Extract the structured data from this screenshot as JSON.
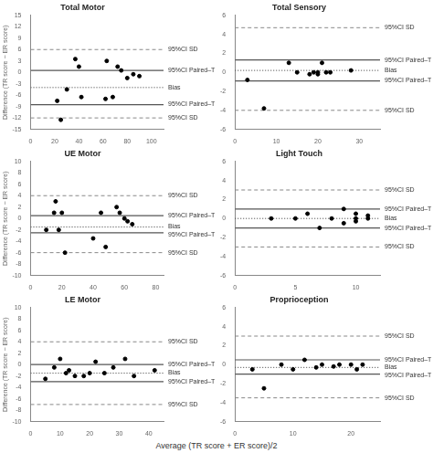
{
  "chart_data": [
    {
      "type": "scatter",
      "title": "Total Motor",
      "ylabel": "Difference (TR score − ER score)",
      "x": [
        22,
        25,
        30,
        37,
        40,
        42,
        62,
        63,
        68,
        72,
        75,
        80,
        85,
        90
      ],
      "values": [
        -7.5,
        -12.5,
        -4.5,
        3.5,
        1.5,
        -6.5,
        -7.0,
        3.0,
        -6.5,
        1.5,
        0.5,
        -1.5,
        -0.5,
        -1.0
      ],
      "color": "#000000",
      "xlim": [
        0,
        110
      ],
      "ylim": [
        -15,
        15
      ],
      "xticks": [
        0,
        20,
        40,
        60,
        80,
        100
      ],
      "yticks": [
        -15,
        -12,
        -9,
        -6,
        -3,
        0,
        3,
        6,
        9,
        12,
        15
      ],
      "grid": false,
      "annotations": [
        {
          "y": 6.0,
          "text": "95%CI SD",
          "line_style": "dashed",
          "color": "#888888"
        },
        {
          "y": -12.0,
          "text": "95%CI SD",
          "line_style": "dashed",
          "color": "#888888"
        },
        {
          "y": 0.5,
          "text": "95%CI Paired–T",
          "line_style": "solid",
          "color": "#555555"
        },
        {
          "y": -8.5,
          "text": "95%CI Paired–T",
          "line_style": "solid",
          "color": "#555555"
        },
        {
          "y": -4.0,
          "text": "Bias",
          "line_style": "dotted",
          "color": "#333333"
        }
      ]
    },
    {
      "type": "scatter",
      "title": "Total Sensory",
      "x": [
        3,
        7,
        13,
        15,
        18,
        19,
        20,
        20,
        21,
        22,
        23,
        28
      ],
      "values": [
        -0.8,
        -3.8,
        1.0,
        0.0,
        -0.2,
        0.0,
        0.0,
        -0.2,
        1.0,
        0.0,
        0.0,
        0.2
      ],
      "color": "#000000",
      "xlim": [
        0,
        35
      ],
      "ylim": [
        -6,
        6
      ],
      "xticks": [
        0,
        10,
        20,
        30
      ],
      "yticks": [
        -6,
        -4,
        -2,
        0,
        2,
        4,
        6
      ],
      "grid": false,
      "annotations": [
        {
          "y": 4.7,
          "text": "95%CI SD",
          "line_style": "dashed",
          "color": "#888888"
        },
        {
          "y": -4.0,
          "text": "95%CI SD",
          "line_style": "dashed",
          "color": "#888888"
        },
        {
          "y": 1.3,
          "text": "95%CI Paired–T",
          "line_style": "solid",
          "color": "#555555"
        },
        {
          "y": -0.9,
          "text": "95%CI Paired–T",
          "line_style": "solid",
          "color": "#555555"
        },
        {
          "y": 0.2,
          "text": "Bias",
          "line_style": "dotted",
          "color": "#333333"
        }
      ]
    },
    {
      "type": "scatter",
      "title": "UE Motor",
      "ylabel": "Difference (TR score − ER score)",
      "x": [
        10,
        15,
        16,
        18,
        20,
        22,
        40,
        45,
        48,
        55,
        57,
        60,
        62,
        65
      ],
      "values": [
        -2.0,
        1.0,
        3.0,
        -2.0,
        1.0,
        -6.0,
        -3.5,
        1.0,
        -5.0,
        2.0,
        1.0,
        0.0,
        -0.5,
        -1.0
      ],
      "color": "#000000",
      "xlim": [
        0,
        85
      ],
      "ylim": [
        -10,
        10
      ],
      "xticks": [
        0,
        20,
        40,
        60,
        80
      ],
      "yticks": [
        -10,
        -8,
        -6,
        -4,
        -2,
        0,
        2,
        4,
        6,
        8,
        10
      ],
      "grid": false,
      "annotations": [
        {
          "y": 4.0,
          "text": "95%CI SD",
          "line_style": "dashed",
          "color": "#888888"
        },
        {
          "y": -6.0,
          "text": "95%CI SD",
          "line_style": "dashed",
          "color": "#888888"
        },
        {
          "y": 0.5,
          "text": "95%CI Paired–T",
          "line_style": "solid",
          "color": "#555555"
        },
        {
          "y": -2.5,
          "text": "95%CI Paired–T",
          "line_style": "solid",
          "color": "#555555"
        },
        {
          "y": -1.5,
          "text": "Bias",
          "line_style": "dotted",
          "color": "#333333"
        }
      ]
    },
    {
      "type": "scatter",
      "title": "Light Touch",
      "x": [
        3,
        5,
        6,
        7,
        8,
        9,
        9,
        10,
        10,
        10,
        11,
        11
      ],
      "values": [
        0.0,
        0.0,
        0.5,
        -1.0,
        0.0,
        1.0,
        -0.5,
        0.0,
        0.5,
        -0.3,
        0.0,
        0.3
      ],
      "color": "#000000",
      "xlim": [
        0,
        12
      ],
      "ylim": [
        -6,
        6
      ],
      "xticks": [
        0,
        5,
        10
      ],
      "yticks": [
        -6,
        -4,
        -2,
        0,
        2,
        4,
        6
      ],
      "grid": false,
      "annotations": [
        {
          "y": 3.0,
          "text": "95%CI SD",
          "line_style": "dashed",
          "color": "#888888"
        },
        {
          "y": -3.0,
          "text": "95%CI SD",
          "line_style": "dashed",
          "color": "#888888"
        },
        {
          "y": 1.0,
          "text": "95%CI Paired–T",
          "line_style": "solid",
          "color": "#555555"
        },
        {
          "y": -1.0,
          "text": "95%CI Paired–T",
          "line_style": "solid",
          "color": "#555555"
        },
        {
          "y": 0.0,
          "text": "Bias",
          "line_style": "dotted",
          "color": "#333333"
        }
      ]
    },
    {
      "type": "scatter",
      "title": "LE Motor",
      "ylabel": "Difference (TR score − ER score)",
      "x": [
        5,
        8,
        10,
        12,
        13,
        15,
        18,
        20,
        22,
        25,
        28,
        32,
        35,
        42
      ],
      "values": [
        -2.5,
        -0.5,
        1.0,
        -1.5,
        -1.0,
        -2.0,
        -2.0,
        -1.5,
        0.5,
        -1.5,
        -0.5,
        1.0,
        -2.0,
        -1.0
      ],
      "color": "#000000",
      "xlim": [
        0,
        45
      ],
      "ylim": [
        -10,
        10
      ],
      "xticks": [
        0,
        10,
        20,
        30,
        40
      ],
      "yticks": [
        -10,
        -8,
        -6,
        -4,
        -2,
        0,
        2,
        4,
        6,
        8,
        10
      ],
      "grid": false,
      "annotations": [
        {
          "y": 4.0,
          "text": "95%CI SD",
          "line_style": "dashed",
          "color": "#888888"
        },
        {
          "y": -7.0,
          "text": "95%CI SD",
          "line_style": "dashed",
          "color": "#888888"
        },
        {
          "y": 0.0,
          "text": "95%CI Paired–T",
          "line_style": "solid",
          "color": "#555555"
        },
        {
          "y": -3.0,
          "text": "95%CI Paired–T",
          "line_style": "solid",
          "color": "#555555"
        },
        {
          "y": -1.5,
          "text": "Bias",
          "line_style": "dotted",
          "color": "#333333"
        }
      ]
    },
    {
      "type": "scatter",
      "title": "Proprioception",
      "x": [
        3,
        5,
        8,
        10,
        12,
        14,
        15,
        17,
        18,
        20,
        21,
        22
      ],
      "values": [
        -0.5,
        -2.5,
        0.0,
        -0.5,
        0.5,
        -0.3,
        0.0,
        -0.2,
        0.0,
        0.0,
        -0.5,
        0.0
      ],
      "color": "#000000",
      "xlim": [
        0,
        25
      ],
      "ylim": [
        -6,
        6
      ],
      "xticks": [
        0,
        10,
        20
      ],
      "yticks": [
        -6,
        -4,
        -2,
        0,
        2,
        4,
        6
      ],
      "grid": false,
      "annotations": [
        {
          "y": 3.0,
          "text": "95%CI SD",
          "line_style": "dashed",
          "color": "#888888"
        },
        {
          "y": -3.5,
          "text": "95%CI SD",
          "line_style": "dashed",
          "color": "#888888"
        },
        {
          "y": 0.5,
          "text": "95%CI Paired–T",
          "line_style": "solid",
          "color": "#555555"
        },
        {
          "y": -1.0,
          "text": "95%CI Paired–T",
          "line_style": "solid",
          "color": "#555555"
        },
        {
          "y": -0.3,
          "text": "Bias",
          "line_style": "dotted",
          "color": "#333333"
        }
      ]
    }
  ],
  "xlabel": "Average (TR score + ER score)/2"
}
